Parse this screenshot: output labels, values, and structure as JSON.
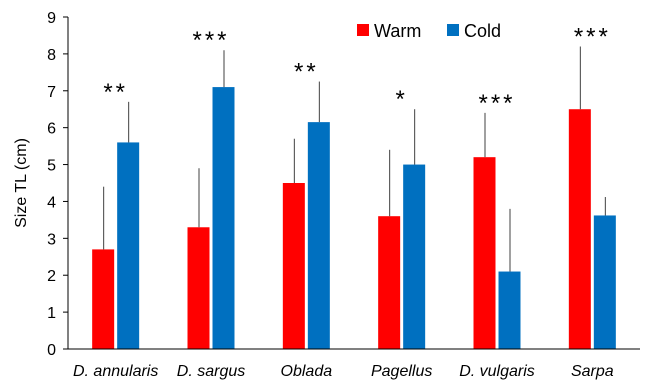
{
  "chart_data": {
    "type": "bar",
    "title": "",
    "xlabel": "",
    "ylabel": "Size TL (cm)",
    "ylim": [
      0,
      9
    ],
    "yticks": [
      "0",
      "1",
      "2",
      "3",
      "4",
      "5",
      "6",
      "7",
      "8",
      "9"
    ],
    "grid": false,
    "legend_position": "top-center",
    "categories": [
      "D. annularis",
      "D. sargus",
      "Oblada",
      "Pagellus",
      "D. vulgaris",
      "Sarpa"
    ],
    "series": [
      {
        "name": "Warm",
        "color": "#ff0000",
        "values": [
          2.7,
          3.3,
          4.5,
          3.6,
          5.2,
          6.5
        ],
        "error": [
          1.7,
          1.6,
          1.2,
          1.8,
          1.2,
          1.7
        ]
      },
      {
        "name": "Cold",
        "color": "#0070c0",
        "values": [
          5.6,
          7.1,
          6.15,
          5.0,
          2.1,
          3.62
        ],
        "error": [
          1.1,
          1.0,
          1.1,
          1.5,
          1.7,
          0.5
        ]
      }
    ],
    "annotations": [
      "**",
      "***",
      "**",
      "*",
      "***",
      "***"
    ]
  }
}
